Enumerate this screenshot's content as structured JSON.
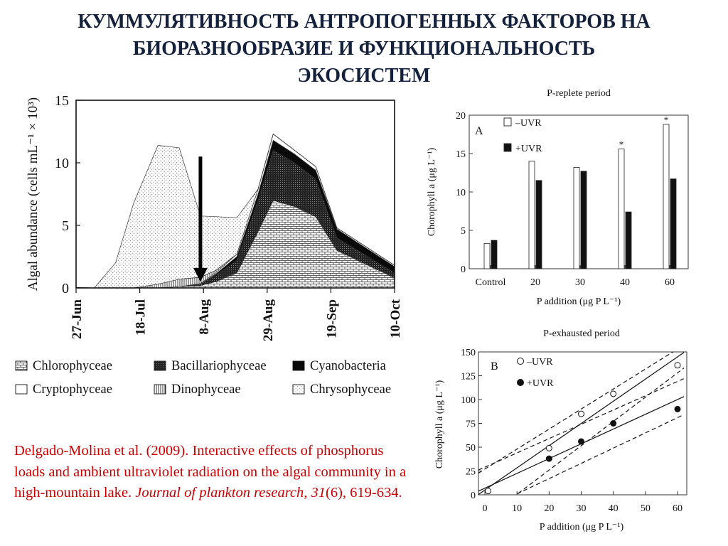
{
  "slide": {
    "title_lines": [
      "КУММУЛЯТИВНОСТЬ АНТРОПОГЕННЫХ ФАКТОРОВ НА",
      "БИОРАЗНООБРАЗИЕ И ФУНКЦИОНАЛЬНОСТЬ",
      "ЭКОСИСТЕМ"
    ],
    "citation": {
      "lead": "Delgado-Molina et al. (2009). Interactive effects of phosphorus loads and ambient ultraviolet radiation on the algal community in a high-mountain lake. ",
      "journal": "Journal of plankton research",
      "sep1": ", ",
      "volume": "31",
      "rest": "(6), 619-634."
    }
  },
  "chart_data": [
    {
      "id": "abundance",
      "type": "area",
      "ylabel": "Algal abundance (cells mL⁻¹ × 10³)",
      "ylim": [
        0,
        15
      ],
      "yticks": [
        0,
        5,
        10,
        15
      ],
      "x_labels": [
        "27-Jun",
        "18-Jul",
        "8-Aug",
        "29-Aug",
        "19-Sep",
        "10-Oct"
      ],
      "x_ticks_day": [
        0,
        21,
        42,
        63,
        84,
        105
      ],
      "x_day": [
        0,
        6,
        13,
        19,
        27,
        34,
        41,
        46,
        53,
        60,
        65,
        72,
        79,
        86,
        105
      ],
      "series": [
        {
          "name": "Chlorophyceae",
          "pattern": "brick",
          "values": [
            0,
            0,
            0,
            0,
            0,
            0.1,
            0.2,
            0.5,
            1.2,
            4.5,
            7.0,
            6.5,
            5.7,
            3.0,
            0.8
          ]
        },
        {
          "name": "Bacillariophyceae",
          "pattern": "dark",
          "values": [
            0,
            0,
            0,
            0,
            0,
            0,
            0.1,
            0.5,
            1.0,
            2.5,
            4.0,
            3.5,
            3.0,
            1.0,
            0.4
          ]
        },
        {
          "name": "Cyanobacteria",
          "pattern": "black",
          "values": [
            0,
            0,
            0,
            0,
            0,
            0,
            0,
            0.1,
            0.3,
            0.5,
            0.8,
            0.7,
            0.7,
            0.7,
            0.5
          ]
        },
        {
          "name": "Cryptophyceae",
          "pattern": "white",
          "values": [
            0,
            0,
            0,
            0,
            0,
            0,
            0.05,
            0.1,
            0.2,
            0.4,
            0.5,
            0.3,
            0.3,
            0.1,
            0.1
          ]
        },
        {
          "name": "Dinophyceae",
          "pattern": "vlines",
          "values": [
            0,
            0,
            0,
            0,
            0.3,
            0.6,
            0.5,
            0.2,
            0,
            0,
            0,
            0,
            0,
            0,
            0
          ]
        },
        {
          "name": "Chrysophyceae",
          "pattern": "dots",
          "values": [
            0.05,
            0,
            2.0,
            6.8,
            11.1,
            10.5,
            4.9,
            4.3,
            2.9,
            0,
            0,
            0,
            0,
            0,
            0
          ]
        }
      ],
      "arrow_day": 41,
      "legend": {
        "rows": [
          [
            "Chlorophyceae",
            "Bacillariophyceae",
            "Cyanobacteria"
          ],
          [
            "Cryptophyceae",
            "Dinophyceae",
            "Chrysophyceae"
          ]
        ]
      }
    },
    {
      "id": "p-replete",
      "type": "bar",
      "title": "P-replete period",
      "panel_label": "A",
      "categories": [
        "Control",
        "20",
        "30",
        "40",
        "60"
      ],
      "series": [
        {
          "name": "–UVR",
          "color": "#ffffff",
          "values": [
            3.3,
            14.0,
            13.2,
            15.6,
            18.8
          ]
        },
        {
          "name": "+UVR",
          "color": "#111111",
          "values": [
            3.7,
            11.5,
            12.7,
            7.4,
            11.7
          ]
        }
      ],
      "significance": [
        "",
        "",
        "",
        "*",
        "*"
      ],
      "ylim": [
        0,
        20
      ],
      "yticks": [
        0,
        5,
        10,
        15,
        20
      ],
      "ylabel": "Chorophyll a (μg L⁻¹)",
      "xlabel": "P addition (μg P L⁻¹)"
    },
    {
      "id": "p-exhausted",
      "type": "scatter",
      "title": "P-exhausted period",
      "panel_label": "B",
      "xlim": [
        0,
        60
      ],
      "xticks": [
        0,
        10,
        20,
        30,
        40,
        50,
        60
      ],
      "ylim": [
        0,
        150
      ],
      "yticks": [
        0,
        25,
        50,
        75,
        100,
        125,
        150
      ],
      "ylabel": "Chorophyll a (μg L⁻¹)",
      "xlabel": "P addition (μg P L⁻¹)",
      "series": [
        {
          "name": "–UVR",
          "marker": "open",
          "x": [
            1,
            20,
            30,
            40,
            60
          ],
          "y": [
            4,
            49,
            85,
            106,
            136
          ],
          "fit": {
            "intercept": 5,
            "slope": 2.33
          },
          "ci_upper": {
            "intercept": 27,
            "slope": 2.1
          },
          "ci_lower": {
            "intercept": -25,
            "slope": 2.55
          }
        },
        {
          "name": "+UVR",
          "marker": "filled",
          "x": [
            20,
            30,
            40,
            60
          ],
          "y": [
            38,
            56,
            75,
            90
          ],
          "fit": {
            "intercept": 7,
            "slope": 1.55
          },
          "ci_upper": {
            "intercept": 29,
            "slope": 1.5
          },
          "ci_lower": {
            "intercept": -15,
            "slope": 1.6
          }
        }
      ]
    }
  ]
}
